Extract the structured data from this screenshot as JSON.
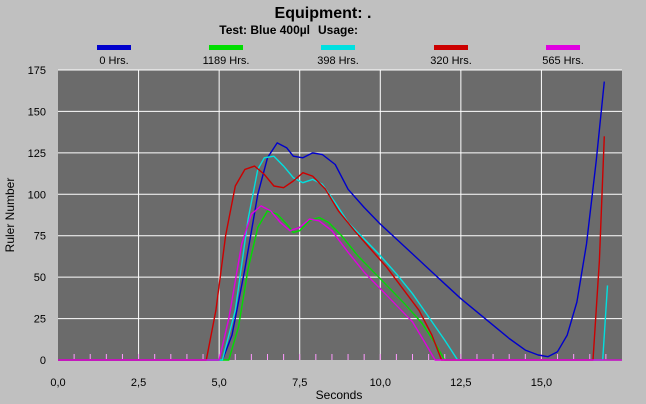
{
  "chart_data": {
    "type": "line",
    "title": "Equipment: .",
    "subtitle_test_label": "Test: Blue 400µl",
    "subtitle_usage_label": "Usage:",
    "xlabel": "Seconds",
    "ylabel": "Ruler Number",
    "xlim": [
      0,
      17.5
    ],
    "ylim": [
      0,
      175
    ],
    "x_ticks": [
      0,
      2.5,
      5,
      7.5,
      10,
      12.5,
      15
    ],
    "x_tick_labels": [
      "0,0",
      "2,5",
      "5,0",
      "7,5",
      "10,0",
      "12,5",
      "15,0"
    ],
    "y_ticks": [
      0,
      25,
      50,
      75,
      100,
      125,
      150,
      175
    ],
    "y_tick_labels": [
      "0",
      "25",
      "50",
      "75",
      "100",
      "125",
      "150",
      "175"
    ],
    "grid": true,
    "legend_position": "top",
    "plot_background": "#6b6b6b",
    "series": [
      {
        "name": "0 Hrs.",
        "color": "#0000cc",
        "points": [
          [
            0,
            0
          ],
          [
            5.1,
            0
          ],
          [
            5.4,
            15
          ],
          [
            5.8,
            55
          ],
          [
            6.2,
            100
          ],
          [
            6.5,
            122
          ],
          [
            6.8,
            131
          ],
          [
            7.1,
            128
          ],
          [
            7.3,
            123
          ],
          [
            7.6,
            122
          ],
          [
            7.9,
            125
          ],
          [
            8.2,
            124
          ],
          [
            8.6,
            118
          ],
          [
            9.0,
            103
          ],
          [
            9.5,
            92
          ],
          [
            10.0,
            82
          ],
          [
            10.5,
            73
          ],
          [
            11.0,
            64
          ],
          [
            11.5,
            55
          ],
          [
            12.0,
            46
          ],
          [
            12.5,
            37
          ],
          [
            13.0,
            29
          ],
          [
            13.5,
            21
          ],
          [
            14.0,
            13
          ],
          [
            14.5,
            6
          ],
          [
            14.9,
            3
          ],
          [
            15.2,
            2
          ],
          [
            15.5,
            5
          ],
          [
            15.8,
            15
          ],
          [
            16.1,
            35
          ],
          [
            16.4,
            70
          ],
          [
            16.7,
            120
          ],
          [
            16.95,
            168
          ]
        ]
      },
      {
        "name": "1189 Hrs.",
        "color": "#00dd00",
        "points": [
          [
            0,
            0
          ],
          [
            5.3,
            0
          ],
          [
            5.6,
            20
          ],
          [
            5.9,
            55
          ],
          [
            6.2,
            80
          ],
          [
            6.5,
            90
          ],
          [
            6.8,
            88
          ],
          [
            7.1,
            82
          ],
          [
            7.3,
            77
          ],
          [
            7.5,
            78
          ],
          [
            7.8,
            84
          ],
          [
            8.1,
            86
          ],
          [
            8.4,
            83
          ],
          [
            8.8,
            75
          ],
          [
            9.3,
            63
          ],
          [
            9.8,
            53
          ],
          [
            10.3,
            43
          ],
          [
            10.8,
            33
          ],
          [
            11.3,
            22
          ],
          [
            11.7,
            10
          ],
          [
            12.0,
            0
          ],
          [
            17.5,
            0
          ]
        ]
      },
      {
        "name": "398 Hrs.",
        "color": "#00e0e0",
        "points": [
          [
            0,
            0
          ],
          [
            5.1,
            0
          ],
          [
            5.5,
            30
          ],
          [
            5.9,
            85
          ],
          [
            6.2,
            115
          ],
          [
            6.4,
            122
          ],
          [
            6.7,
            123
          ],
          [
            7.0,
            117
          ],
          [
            7.3,
            110
          ],
          [
            7.6,
            107
          ],
          [
            7.9,
            109
          ],
          [
            8.2,
            106
          ],
          [
            8.6,
            95
          ],
          [
            9.0,
            83
          ],
          [
            9.5,
            73
          ],
          [
            10.0,
            63
          ],
          [
            10.5,
            52
          ],
          [
            11.0,
            40
          ],
          [
            11.5,
            26
          ],
          [
            12.0,
            12
          ],
          [
            12.4,
            0
          ],
          [
            16.9,
            0
          ],
          [
            17.05,
            45
          ]
        ]
      },
      {
        "name": "320 Hrs.",
        "color": "#cc0000",
        "points": [
          [
            0,
            0
          ],
          [
            4.6,
            0
          ],
          [
            4.9,
            30
          ],
          [
            5.2,
            75
          ],
          [
            5.5,
            105
          ],
          [
            5.8,
            115
          ],
          [
            6.1,
            117
          ],
          [
            6.4,
            112
          ],
          [
            6.7,
            105
          ],
          [
            7.0,
            104
          ],
          [
            7.3,
            108
          ],
          [
            7.6,
            113
          ],
          [
            7.9,
            111
          ],
          [
            8.3,
            103
          ],
          [
            8.7,
            90
          ],
          [
            9.2,
            78
          ],
          [
            9.7,
            67
          ],
          [
            10.2,
            56
          ],
          [
            10.7,
            43
          ],
          [
            11.2,
            30
          ],
          [
            11.6,
            15
          ],
          [
            11.9,
            0
          ],
          [
            16.6,
            0
          ],
          [
            16.8,
            60
          ],
          [
            16.95,
            135
          ]
        ]
      },
      {
        "name": "565 Hrs.",
        "color": "#e000e0",
        "points": [
          [
            0,
            0
          ],
          [
            5.0,
            0
          ],
          [
            5.3,
            25
          ],
          [
            5.7,
            70
          ],
          [
            6.0,
            88
          ],
          [
            6.3,
            93
          ],
          [
            6.6,
            90
          ],
          [
            6.9,
            83
          ],
          [
            7.2,
            78
          ],
          [
            7.5,
            80
          ],
          [
            7.8,
            85
          ],
          [
            8.1,
            84
          ],
          [
            8.5,
            78
          ],
          [
            9.0,
            65
          ],
          [
            9.5,
            53
          ],
          [
            10.0,
            43
          ],
          [
            10.5,
            33
          ],
          [
            11.0,
            23
          ],
          [
            11.4,
            10
          ],
          [
            11.7,
            0
          ],
          [
            17.5,
            0
          ]
        ]
      }
    ]
  }
}
